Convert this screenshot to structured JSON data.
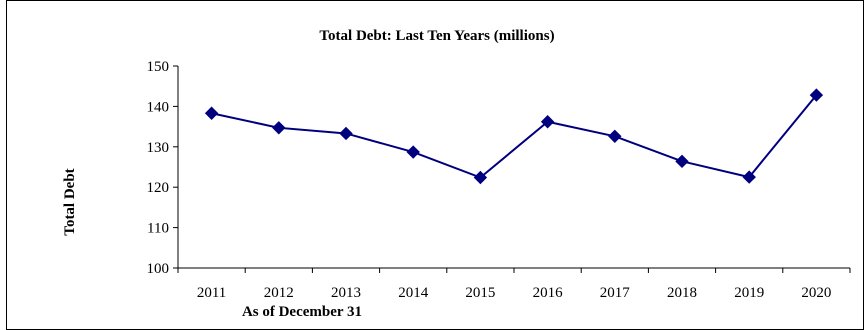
{
  "chart_data": {
    "type": "line",
    "title": "Total Debt: Last Ten Years (millions)",
    "xlabel": "As of December 31",
    "ylabel": "Total Debt",
    "categories": [
      "2011",
      "2012",
      "2013",
      "2014",
      "2015",
      "2016",
      "2017",
      "2018",
      "2019",
      "2020"
    ],
    "series": [
      {
        "values": [
          138.3,
          134.7,
          133.3,
          128.7,
          122.4,
          136.2,
          132.6,
          126.4,
          122.5,
          142.8
        ],
        "color": "#00007f",
        "marker": "diamond"
      }
    ],
    "ylim": [
      100,
      150
    ],
    "yticks": [
      100,
      110,
      120,
      130,
      140,
      150
    ],
    "grid": false,
    "legend": "none"
  }
}
